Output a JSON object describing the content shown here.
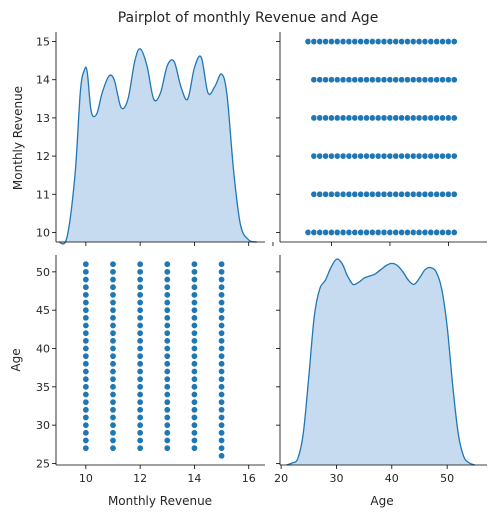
{
  "chart_data": {
    "type": "pairplot",
    "title": "Pairplot of monthly Revenue and Age",
    "variables": [
      "Monthly Revenue",
      "Age"
    ],
    "color": "#1f77b4",
    "fill_color": "#c6dbef",
    "panels": {
      "revenue_kde": {
        "type": "area",
        "xlim": [
          8.9,
          16.6
        ],
        "ylim": [
          0,
          1
        ],
        "x": [
          9.0,
          9.3,
          9.6,
          9.8,
          9.95,
          10.05,
          10.2,
          10.4,
          10.6,
          10.85,
          11.05,
          11.3,
          11.55,
          11.8,
          12.0,
          12.25,
          12.5,
          12.75,
          13.0,
          13.25,
          13.5,
          13.75,
          14.0,
          14.25,
          14.5,
          14.75,
          15.0,
          15.2,
          15.45,
          15.7,
          16.0,
          16.3
        ],
        "y": [
          0.0,
          0.02,
          0.32,
          0.72,
          0.82,
          0.81,
          0.62,
          0.61,
          0.71,
          0.79,
          0.77,
          0.64,
          0.68,
          0.86,
          0.92,
          0.84,
          0.68,
          0.71,
          0.84,
          0.86,
          0.74,
          0.68,
          0.83,
          0.88,
          0.71,
          0.74,
          0.8,
          0.7,
          0.33,
          0.08,
          0.01,
          0.0
        ]
      },
      "revenue_vs_age": {
        "type": "scatter",
        "xlim": [
          21.2,
          56.6
        ],
        "ylim": [
          9.75,
          15.25
        ],
        "y_values": [
          10,
          11,
          12,
          13,
          14,
          15
        ],
        "x_ranges": [
          [
            26,
            51
          ],
          [
            27,
            51
          ],
          [
            27,
            51
          ],
          [
            27,
            51
          ],
          [
            27,
            51
          ],
          [
            26,
            51
          ]
        ]
      },
      "age_vs_revenue": {
        "type": "scatter",
        "xlim": [
          8.9,
          16.6
        ],
        "ylim": [
          24.8,
          52.2
        ],
        "x_values": [
          10,
          11,
          12,
          13,
          14,
          15
        ],
        "y_ranges": [
          [
            27,
            51
          ],
          [
            27,
            51
          ],
          [
            27,
            51
          ],
          [
            27,
            51
          ],
          [
            27,
            51
          ],
          [
            26,
            51
          ]
        ]
      },
      "age_kde": {
        "type": "area",
        "xlim": [
          19.8,
          57.2
        ],
        "ylim": [
          0,
          1
        ],
        "x": [
          21,
          22,
          23,
          24,
          25,
          26,
          27,
          28,
          29,
          30,
          31,
          32,
          33,
          34,
          35,
          36,
          37,
          38,
          39,
          40,
          41,
          42,
          43,
          44,
          45,
          46,
          47,
          48,
          49,
          50,
          51,
          52,
          53,
          54,
          55
        ],
        "y": [
          0.0,
          0.01,
          0.03,
          0.15,
          0.42,
          0.71,
          0.84,
          0.88,
          0.94,
          0.98,
          0.96,
          0.9,
          0.86,
          0.87,
          0.89,
          0.9,
          0.91,
          0.93,
          0.95,
          0.96,
          0.95,
          0.92,
          0.88,
          0.86,
          0.89,
          0.93,
          0.94,
          0.92,
          0.84,
          0.66,
          0.38,
          0.15,
          0.04,
          0.01,
          0.0
        ]
      }
    },
    "axes": {
      "revenue_y_ticks": [
        10,
        11,
        12,
        13,
        14,
        15
      ],
      "revenue_x_ticks": [
        10,
        12,
        14,
        16
      ],
      "age_y_ticks": [
        25,
        30,
        35,
        40,
        45,
        50
      ],
      "age_x_ticks": [
        20,
        30,
        40,
        50
      ],
      "top_left_ylabel": "Monthly Revenue",
      "bottom_left_ylabel": "Age",
      "bottom_left_xlabel": "Monthly Revenue",
      "bottom_right_xlabel": "Age"
    }
  }
}
